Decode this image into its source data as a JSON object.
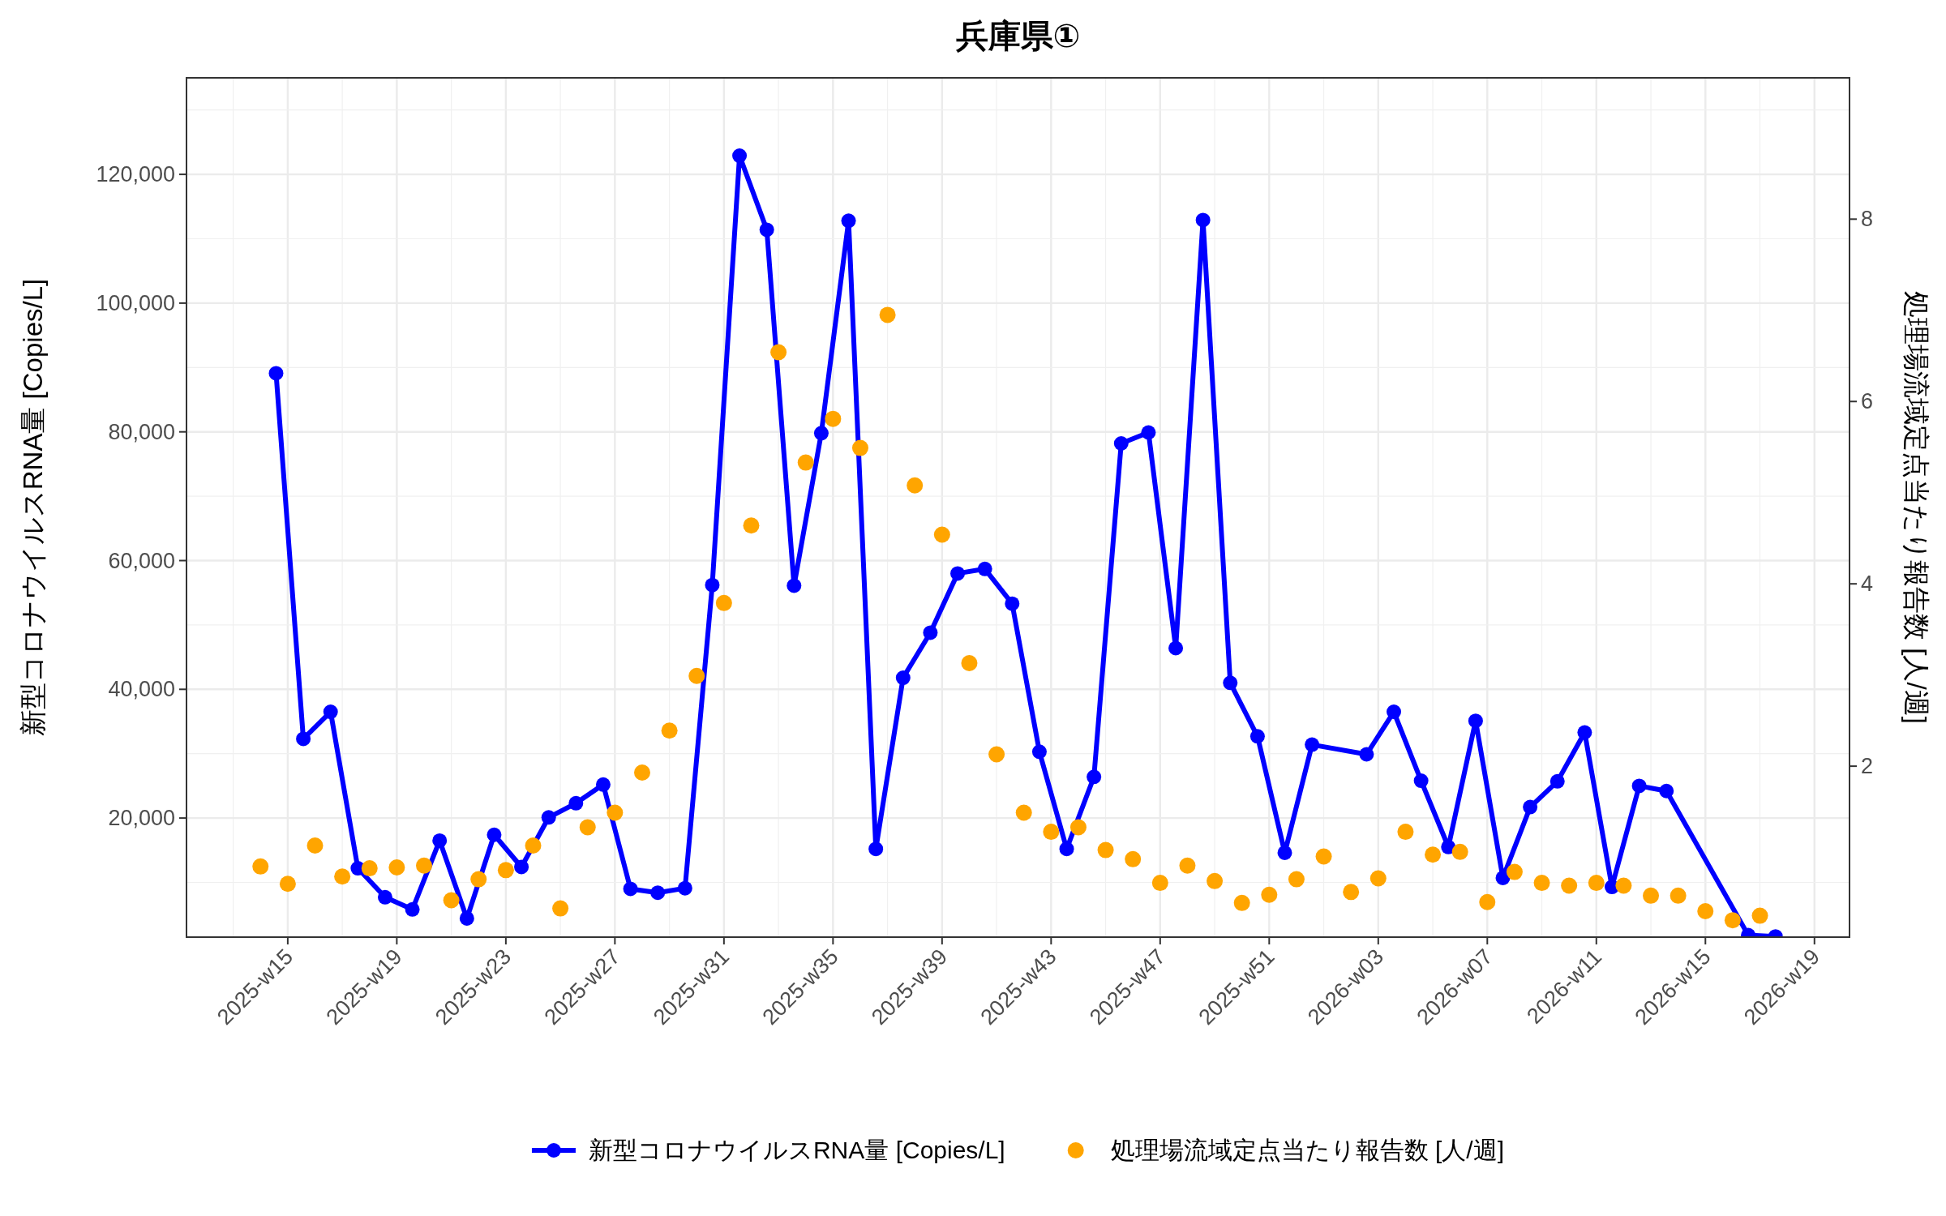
{
  "chart_data": {
    "type": "line",
    "title": "兵庫県①",
    "ylabel": "新型コロナウイルスRNA量 [Copies/L]",
    "y2label": "処理場流域定点当たり報告数 [人/週]",
    "xlim": [
      "2025-03-12",
      "2026-05-13"
    ],
    "xticks": [
      {
        "value": "2025-04-07",
        "label": "2025-w15"
      },
      {
        "value": "2025-05-05",
        "label": "2025-w19"
      },
      {
        "value": "2025-06-02",
        "label": "2025-w23"
      },
      {
        "value": "2025-06-30",
        "label": "2025-w27"
      },
      {
        "value": "2025-07-28",
        "label": "2025-w31"
      },
      {
        "value": "2025-08-25",
        "label": "2025-w35"
      },
      {
        "value": "2025-09-22",
        "label": "2025-w39"
      },
      {
        "value": "2025-10-20",
        "label": "2025-w43"
      },
      {
        "value": "2025-11-17",
        "label": "2025-w47"
      },
      {
        "value": "2025-12-15",
        "label": "2025-w51"
      },
      {
        "value": "2026-01-12",
        "label": "2026-w03"
      },
      {
        "value": "2026-02-09",
        "label": "2026-w07"
      },
      {
        "value": "2026-03-09",
        "label": "2026-w11"
      },
      {
        "value": "2026-04-06",
        "label": "2026-w15"
      },
      {
        "value": "2026-05-04",
        "label": "2026-w19"
      }
    ],
    "ylim": [
      1500,
      135000
    ],
    "yticks": [
      {
        "value": 20000,
        "label": "20,000"
      },
      {
        "value": 40000,
        "label": "40,000"
      },
      {
        "value": 60000,
        "label": "60,000"
      },
      {
        "value": 80000,
        "label": "80,000"
      },
      {
        "value": 100000,
        "label": "100,000"
      },
      {
        "value": 120000,
        "label": "120,000"
      }
    ],
    "y2lim": [
      0.125,
      9.55
    ],
    "y2ticks": [
      2,
      4,
      6,
      8
    ],
    "grid": true,
    "legend": "bottom",
    "series": [
      {
        "name": "新型コロナウイルスRNA量 [Copies/L]",
        "marker": "circle",
        "color": "#0000ff",
        "x": [
          "2025-04-04",
          "2025-04-11",
          "2025-04-18",
          "2025-04-25",
          "2025-05-02",
          "2025-05-09",
          "2025-05-16",
          "2025-05-23",
          "2025-05-30",
          "2025-06-06",
          "2025-06-13",
          "2025-06-20",
          "2025-06-27",
          "2025-07-04",
          "2025-07-11",
          "2025-07-18",
          "2025-07-25",
          "2025-08-01",
          "2025-08-08",
          "2025-08-15",
          "2025-08-22",
          "2025-08-29",
          "2025-09-05",
          "2025-09-12",
          "2025-09-19",
          "2025-09-26",
          "2025-10-03",
          "2025-10-10",
          "2025-10-17",
          "2025-10-24",
          "2025-10-31",
          "2025-11-07",
          "2025-11-14",
          "2025-11-21",
          "2025-11-28",
          "2025-12-05",
          "2025-12-12",
          "2025-12-19",
          "2025-12-26",
          "2026-01-09",
          "2026-01-16",
          "2026-01-23",
          "2026-01-30",
          "2026-02-06",
          "2026-02-13",
          "2026-02-20",
          "2026-02-27",
          "2026-03-06",
          "2026-03-13",
          "2026-03-20",
          "2026-03-27",
          "2026-04-17",
          "2026-04-24"
        ],
        "values": [
          89100,
          32300,
          36500,
          12200,
          7700,
          5800,
          16500,
          4400,
          17400,
          12400,
          20100,
          22300,
          25200,
          9000,
          8400,
          9100,
          56200,
          122900,
          111400,
          56100,
          79800,
          112800,
          15200,
          41800,
          48800,
          58000,
          58700,
          53300,
          30300,
          15200,
          26400,
          78200,
          79900,
          46400,
          112900,
          41000,
          32700,
          14600,
          31400,
          29900,
          36500,
          25800,
          15500,
          35100,
          10700,
          21700,
          25700,
          33300,
          9300,
          25000,
          24200,
          1800,
          1600
        ]
      },
      {
        "name": "処理場流域定点当たり報告数 [人/週]",
        "type": "scatter",
        "axis": "y2",
        "color": "#ffa500",
        "x": [
          "2025-03-31",
          "2025-04-07",
          "2025-04-14",
          "2025-04-21",
          "2025-04-28",
          "2025-05-05",
          "2025-05-12",
          "2025-05-19",
          "2025-05-26",
          "2025-06-02",
          "2025-06-09",
          "2025-06-16",
          "2025-06-23",
          "2025-06-30",
          "2025-07-07",
          "2025-07-14",
          "2025-07-21",
          "2025-07-28",
          "2025-08-04",
          "2025-08-11",
          "2025-08-18",
          "2025-08-25",
          "2025-09-01",
          "2025-09-08",
          "2025-09-15",
          "2025-09-22",
          "2025-09-29",
          "2025-10-06",
          "2025-10-13",
          "2025-10-20",
          "2025-10-27",
          "2025-11-03",
          "2025-11-10",
          "2025-11-17",
          "2025-11-24",
          "2025-12-01",
          "2025-12-08",
          "2025-12-15",
          "2025-12-22",
          "2025-12-29",
          "2026-01-05",
          "2026-01-12",
          "2026-01-19",
          "2026-01-26",
          "2026-02-02",
          "2026-02-09",
          "2026-02-16",
          "2026-02-23",
          "2026-03-02",
          "2026-03-09",
          "2026-03-16",
          "2026-03-23",
          "2026-03-30",
          "2026-04-06",
          "2026-04-13",
          "2026-04-20"
        ],
        "values": [
          0.9,
          0.71,
          1.13,
          0.79,
          0.88,
          0.89,
          0.91,
          0.53,
          0.76,
          0.86,
          1.13,
          0.44,
          1.33,
          1.49,
          1.93,
          2.39,
          2.99,
          3.79,
          4.64,
          6.54,
          5.33,
          5.81,
          5.49,
          6.95,
          5.08,
          4.54,
          3.13,
          2.13,
          1.49,
          1.28,
          1.33,
          1.08,
          0.98,
          0.72,
          0.91,
          0.74,
          0.5,
          0.59,
          0.76,
          1.01,
          0.62,
          0.77,
          1.28,
          1.03,
          1.06,
          0.51,
          0.84,
          0.72,
          0.69,
          0.72,
          0.69,
          0.58,
          0.58,
          0.41,
          0.31,
          0.36
        ]
      }
    ]
  }
}
